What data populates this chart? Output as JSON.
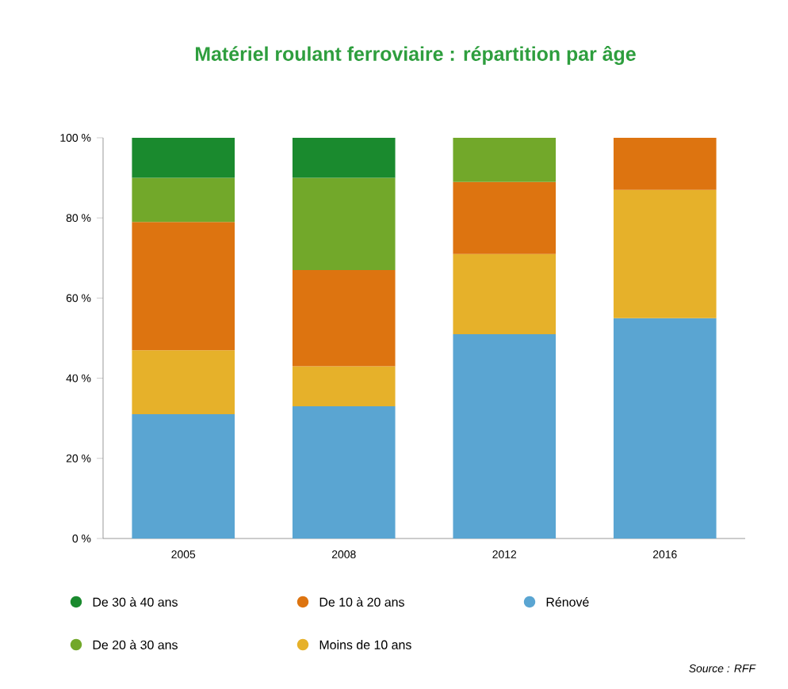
{
  "chart_data": {
    "type": "bar",
    "stacked": true,
    "title": "Matériel roulant  ferroviaire : répartition par âge",
    "categories": [
      "2005",
      "2008",
      "2012",
      "2016"
    ],
    "series": [
      {
        "name": "Rénové",
        "color": "#5aa5d2",
        "values": [
          31,
          33,
          51,
          55
        ]
      },
      {
        "name": "Moins de 10 ans",
        "color": "#e6b12a",
        "values": [
          16,
          10,
          20,
          32
        ]
      },
      {
        "name": "De 10 à 20 ans",
        "color": "#dd7410",
        "values": [
          32,
          24,
          18,
          13
        ]
      },
      {
        "name": "De 20 à 30 ans",
        "color": "#72a82a",
        "values": [
          11,
          23,
          11,
          null
        ]
      },
      {
        "name": "De 30 à 40 ans",
        "color": "#1a8a2e",
        "values": [
          10,
          10,
          null,
          null
        ]
      }
    ],
    "ylim": [
      0,
      100
    ],
    "yticks": [
      {
        "value": 0,
        "label": "0 %"
      },
      {
        "value": 20,
        "label": "20 %"
      },
      {
        "value": 40,
        "label": "40 %"
      },
      {
        "value": 60,
        "label": "60 %"
      },
      {
        "value": 80,
        "label": "80 %"
      },
      {
        "value": 100,
        "label": "100 %"
      }
    ],
    "legend": "bottom",
    "annotations": [
      "Source : RFF"
    ]
  }
}
